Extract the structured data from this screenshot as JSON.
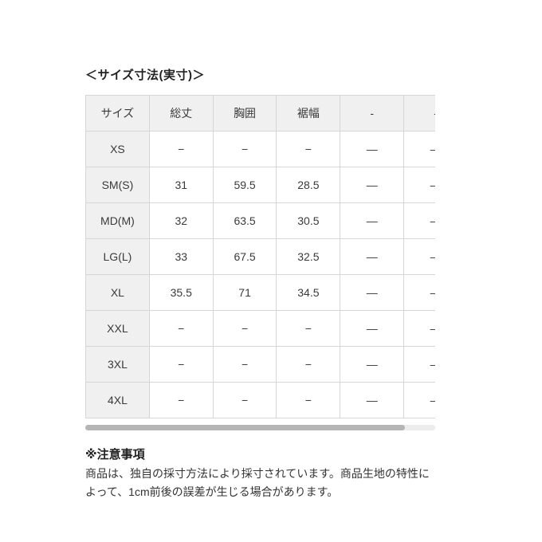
{
  "page": {
    "title": "＜サイズ寸法(実寸)＞"
  },
  "size_table": {
    "columns": [
      "サイズ",
      "総丈",
      "胸囲",
      "裾幅",
      "-",
      "-"
    ],
    "rows": [
      {
        "size": "XS",
        "values": [
          "−",
          "−",
          "−",
          "—",
          "—"
        ]
      },
      {
        "size": "SM(S)",
        "values": [
          "31",
          "59.5",
          "28.5",
          "—",
          "—"
        ]
      },
      {
        "size": "MD(M)",
        "values": [
          "32",
          "63.5",
          "30.5",
          "—",
          "—"
        ]
      },
      {
        "size": "LG(L)",
        "values": [
          "33",
          "67.5",
          "32.5",
          "—",
          "—"
        ]
      },
      {
        "size": "XL",
        "values": [
          "35.5",
          "71",
          "34.5",
          "—",
          "—"
        ]
      },
      {
        "size": "XXL",
        "values": [
          "−",
          "−",
          "−",
          "—",
          "—"
        ]
      },
      {
        "size": "3XL",
        "values": [
          "−",
          "−",
          "−",
          "—",
          "—"
        ]
      },
      {
        "size": "4XL",
        "values": [
          "−",
          "−",
          "−",
          "—",
          "—"
        ]
      }
    ]
  },
  "scrollbar": {
    "orientation": "horizontal",
    "track_color": "#ececec",
    "thumb_color": "#b5b5b5"
  },
  "notes": {
    "heading": "※注意事項",
    "lines": [
      "商品は、独自の採寸方法により採寸されています。商品生地の特性に",
      "よって、1cm前後の誤差が生じる場合があります。"
    ]
  },
  "colors": {
    "header_cell_bg": "#f0f0f0",
    "table_border": "#d6d6d6",
    "cell_text": "#3a3a3a",
    "page_bg": "#ffffff"
  }
}
